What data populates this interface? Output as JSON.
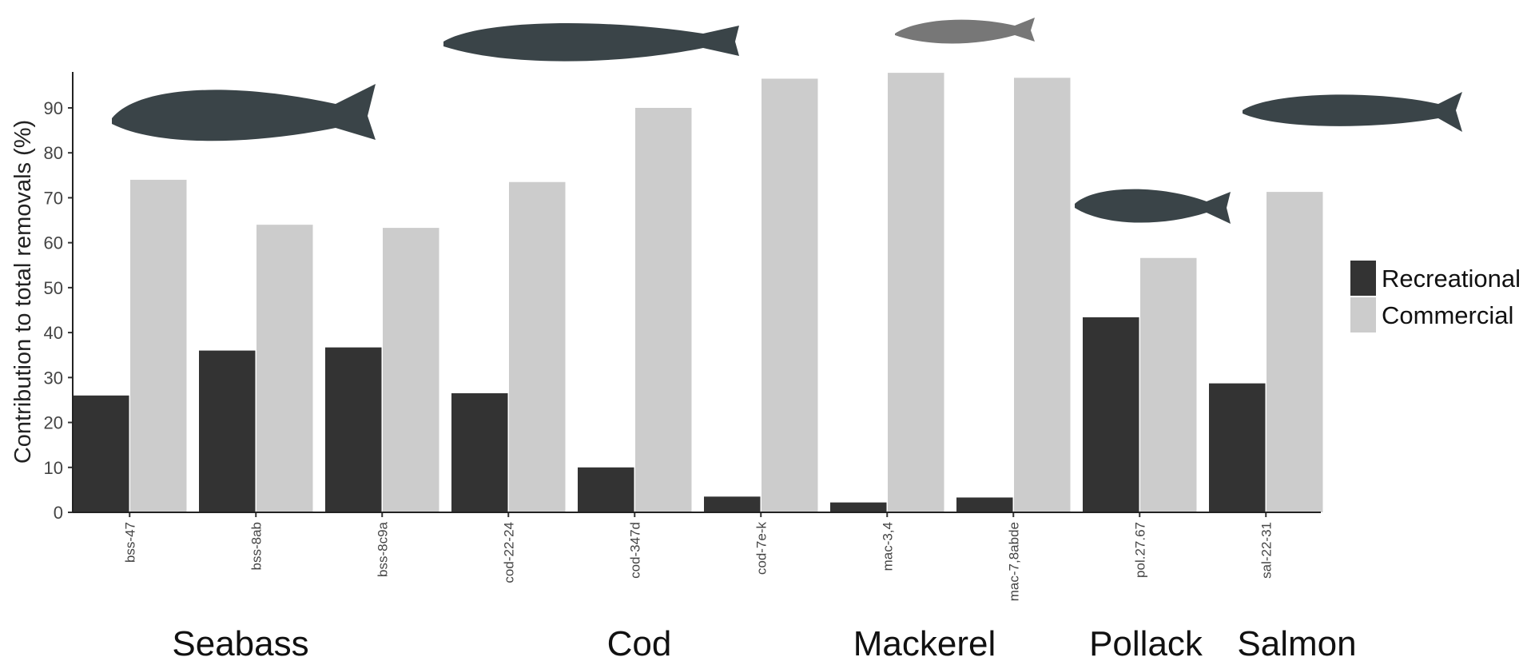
{
  "chart_data": {
    "type": "bar",
    "y_label": "Contribution to total removals (%)",
    "categories": [
      "bss-47",
      "bss-8ab",
      "bss-8c9a",
      "cod-22-24",
      "cod-347d",
      "cod-7e-k",
      "mac-3,4",
      "mac-7,8abde",
      "pol.27.67",
      "sal-22-31"
    ],
    "series": [
      {
        "name": "Recreational",
        "color": "#333333",
        "values": [
          26,
          36,
          36.7,
          26.5,
          10,
          3.5,
          2.2,
          3.3,
          43.4,
          28.7
        ]
      },
      {
        "name": "Commercial",
        "color": "#cccccc",
        "values": [
          74,
          64,
          63.3,
          73.5,
          90,
          96.5,
          97.8,
          96.7,
          56.6,
          71.3
        ]
      }
    ],
    "group_labels": [
      "Seabass",
      "Cod",
      "Mackerel",
      "Pollack",
      "Salmon"
    ],
    "ylim": [
      0,
      98
    ],
    "yticks": [
      0,
      10,
      20,
      30,
      40,
      50,
      60,
      70,
      80,
      90
    ],
    "grid": false
  }
}
